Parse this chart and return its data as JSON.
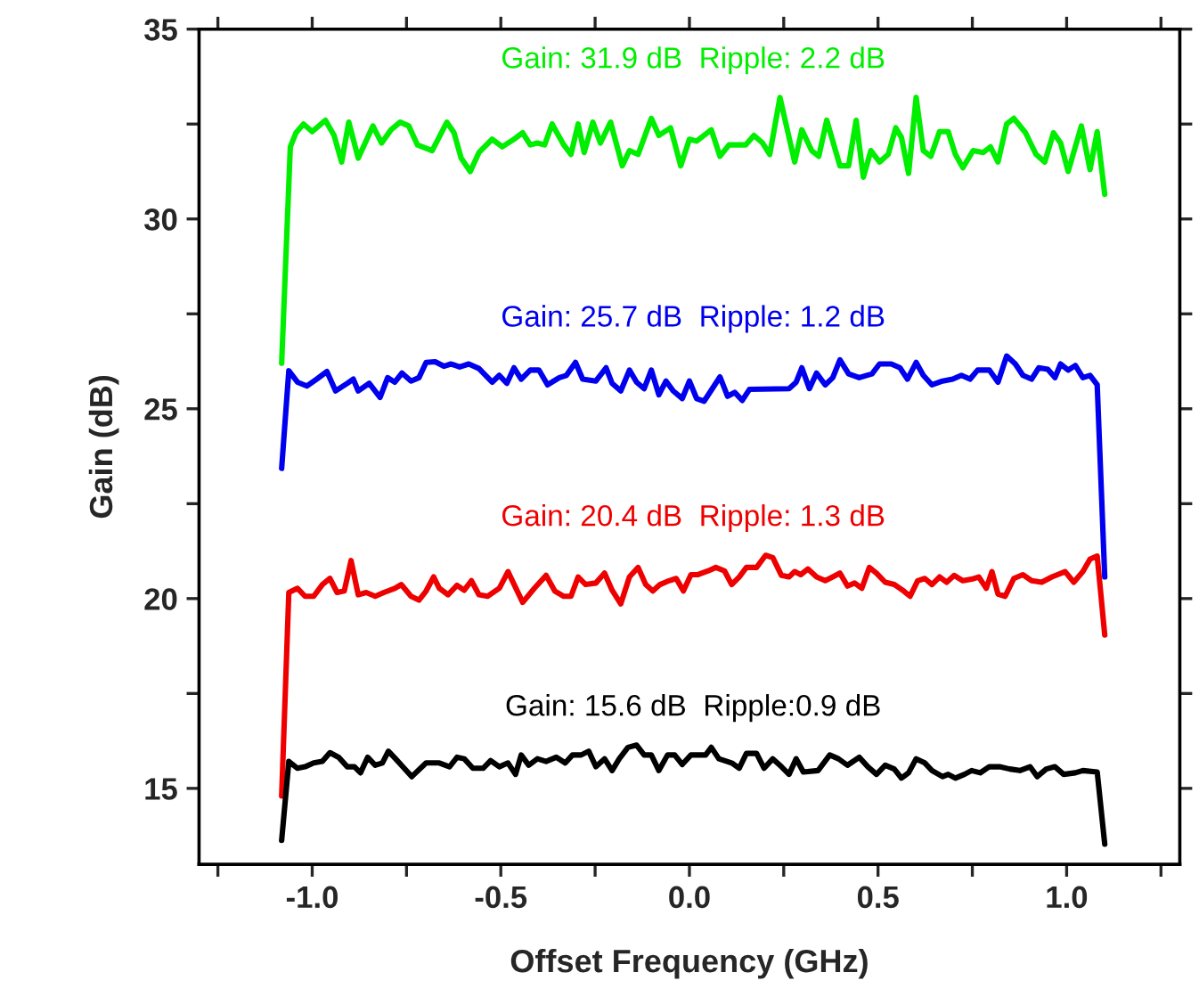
{
  "chart_data": {
    "type": "line",
    "xlabel": "Offset Frequency (GHz)",
    "ylabel": "Gain (dB)",
    "xlim": [
      -1.3,
      1.3
    ],
    "ylim": [
      13,
      35
    ],
    "xticks": [
      {
        "value": -1.25,
        "label": null
      },
      {
        "value": -1.0,
        "label": "-1.0"
      },
      {
        "value": -0.75,
        "label": null
      },
      {
        "value": -0.5,
        "label": "-0.5"
      },
      {
        "value": -0.25,
        "label": null
      },
      {
        "value": 0.0,
        "label": "0.0"
      },
      {
        "value": 0.25,
        "label": null
      },
      {
        "value": 0.5,
        "label": "0.5"
      },
      {
        "value": 0.75,
        "label": null
      },
      {
        "value": 1.0,
        "label": "1.0"
      },
      {
        "value": 1.25,
        "label": null
      }
    ],
    "yticks": [
      15,
      {
        "value": 17.5,
        "label": null
      },
      20,
      {
        "value": 22.5,
        "label": null
      },
      25,
      {
        "value": 27.5,
        "label": null
      },
      30,
      {
        "value": 32.5,
        "label": null
      },
      35
    ],
    "grid": false,
    "legend": false,
    "marker": "none",
    "line_style": "solid",
    "series": [
      {
        "name": "Gain: 31.9 dB  Ripple: 2.2 dB",
        "color": "#00ee00",
        "x": [
          -1.081,
          -1.058,
          -1.043,
          -1.023,
          -1.0,
          -0.965,
          -0.942,
          -0.922,
          -0.903,
          -0.878,
          -0.839,
          -0.816,
          -0.791,
          -0.767,
          -0.744,
          -0.721,
          -0.682,
          -0.643,
          -0.624,
          -0.605,
          -0.581,
          -0.558,
          -0.523,
          -0.496,
          -0.465,
          -0.442,
          -0.422,
          -0.403,
          -0.384,
          -0.364,
          -0.333,
          -0.314,
          -0.295,
          -0.279,
          -0.256,
          -0.236,
          -0.209,
          -0.178,
          -0.159,
          -0.136,
          -0.101,
          -0.081,
          -0.05,
          -0.023,
          0.0,
          0.019,
          0.058,
          0.081,
          0.105,
          0.149,
          0.171,
          0.194,
          0.213,
          0.24,
          0.279,
          0.298,
          0.324,
          0.343,
          0.364,
          0.399,
          0.422,
          0.442,
          0.461,
          0.481,
          0.504,
          0.527,
          0.547,
          0.562,
          0.581,
          0.601,
          0.62,
          0.64,
          0.663,
          0.686,
          0.705,
          0.725,
          0.752,
          0.779,
          0.798,
          0.818,
          0.841,
          0.86,
          0.891,
          0.919,
          0.942,
          0.965,
          0.984,
          1.004,
          1.039,
          1.062,
          1.081,
          1.101
        ],
        "values": [
          26.2,
          31.9,
          32.27,
          32.5,
          32.3,
          32.6,
          32.2,
          31.5,
          32.55,
          31.6,
          32.45,
          32.0,
          32.35,
          32.55,
          32.45,
          31.95,
          31.8,
          32.55,
          32.27,
          31.6,
          31.25,
          31.75,
          32.1,
          31.9,
          32.1,
          32.27,
          31.95,
          32.0,
          31.95,
          32.5,
          31.95,
          31.7,
          32.5,
          31.75,
          32.55,
          32.0,
          32.55,
          31.4,
          31.8,
          31.7,
          32.65,
          32.2,
          32.4,
          31.4,
          32.1,
          32.05,
          32.35,
          31.65,
          31.95,
          31.95,
          32.2,
          32.0,
          31.7,
          33.2,
          31.5,
          32.35,
          31.8,
          31.65,
          32.6,
          31.4,
          31.4,
          32.6,
          31.1,
          31.8,
          31.5,
          31.7,
          32.4,
          32.15,
          31.2,
          33.2,
          31.8,
          31.65,
          32.3,
          32.3,
          31.7,
          31.35,
          31.8,
          31.75,
          31.9,
          31.5,
          32.5,
          32.65,
          32.27,
          31.7,
          31.5,
          32.27,
          32.0,
          31.25,
          32.45,
          31.3,
          32.3,
          30.65
        ]
      },
      {
        "name": "Gain: 25.7 dB  Ripple: 1.2 dB",
        "color": "#0000ee",
        "x": [
          -1.081,
          -1.062,
          -1.039,
          -1.014,
          -0.988,
          -0.961,
          -0.938,
          -0.907,
          -0.891,
          -0.878,
          -0.849,
          -0.82,
          -0.8,
          -0.781,
          -0.762,
          -0.738,
          -0.717,
          -0.698,
          -0.674,
          -0.651,
          -0.632,
          -0.609,
          -0.585,
          -0.558,
          -0.523,
          -0.504,
          -0.484,
          -0.465,
          -0.446,
          -0.422,
          -0.399,
          -0.376,
          -0.345,
          -0.326,
          -0.302,
          -0.283,
          -0.248,
          -0.221,
          -0.205,
          -0.182,
          -0.159,
          -0.14,
          -0.12,
          -0.101,
          -0.081,
          -0.062,
          -0.043,
          -0.019,
          0.0,
          0.019,
          0.039,
          0.081,
          0.101,
          0.12,
          0.14,
          0.159,
          0.264,
          0.283,
          0.298,
          0.318,
          0.337,
          0.36,
          0.38,
          0.399,
          0.422,
          0.45,
          0.484,
          0.504,
          0.535,
          0.558,
          0.578,
          0.601,
          0.62,
          0.643,
          0.671,
          0.698,
          0.721,
          0.744,
          0.764,
          0.795,
          0.818,
          0.841,
          0.864,
          0.884,
          0.907,
          0.926,
          0.95,
          0.969,
          0.984,
          1.004,
          1.023,
          1.043,
          1.062,
          1.081,
          1.101
        ],
        "values": [
          23.43,
          26.0,
          25.7,
          25.6,
          25.78,
          25.98,
          25.47,
          25.67,
          25.78,
          25.47,
          25.67,
          25.3,
          25.82,
          25.7,
          25.94,
          25.73,
          25.82,
          26.22,
          26.24,
          26.12,
          26.18,
          26.1,
          26.18,
          26.06,
          25.7,
          25.88,
          25.67,
          26.08,
          25.78,
          26.02,
          26.02,
          25.63,
          25.82,
          25.88,
          26.22,
          25.78,
          25.73,
          26.08,
          25.67,
          25.47,
          26.02,
          25.7,
          25.53,
          26.02,
          25.37,
          25.73,
          25.47,
          25.27,
          25.73,
          25.27,
          25.2,
          25.84,
          25.33,
          25.43,
          25.22,
          25.51,
          25.53,
          25.7,
          26.08,
          25.53,
          25.94,
          25.63,
          25.82,
          26.29,
          25.92,
          25.82,
          25.92,
          26.18,
          26.18,
          26.08,
          25.78,
          26.22,
          25.88,
          25.63,
          25.73,
          25.78,
          25.88,
          25.78,
          26.02,
          26.02,
          25.7,
          26.39,
          26.18,
          25.88,
          25.78,
          26.08,
          26.04,
          25.82,
          26.18,
          26.02,
          26.14,
          25.82,
          25.88,
          25.63,
          20.57
        ]
      },
      {
        "name": "Gain: 20.4 dB  Ripple: 1.3 dB",
        "color": "#ee0000",
        "x": [
          -1.081,
          -1.062,
          -1.039,
          -1.019,
          -0.996,
          -0.973,
          -0.953,
          -0.934,
          -0.915,
          -0.897,
          -0.878,
          -0.857,
          -0.833,
          -0.81,
          -0.781,
          -0.764,
          -0.738,
          -0.717,
          -0.698,
          -0.678,
          -0.663,
          -0.64,
          -0.616,
          -0.597,
          -0.578,
          -0.558,
          -0.535,
          -0.504,
          -0.481,
          -0.442,
          -0.411,
          -0.38,
          -0.357,
          -0.333,
          -0.314,
          -0.295,
          -0.275,
          -0.248,
          -0.225,
          -0.205,
          -0.182,
          -0.159,
          -0.136,
          -0.116,
          -0.097,
          -0.078,
          -0.054,
          -0.035,
          -0.016,
          0.004,
          0.023,
          0.05,
          0.07,
          0.093,
          0.112,
          0.132,
          0.151,
          0.178,
          0.202,
          0.221,
          0.244,
          0.264,
          0.279,
          0.295,
          0.314,
          0.337,
          0.36,
          0.38,
          0.399,
          0.419,
          0.438,
          0.457,
          0.477,
          0.496,
          0.519,
          0.543,
          0.568,
          0.585,
          0.605,
          0.624,
          0.643,
          0.663,
          0.682,
          0.702,
          0.725,
          0.748,
          0.767,
          0.787,
          0.802,
          0.818,
          0.837,
          0.86,
          0.884,
          0.907,
          0.934,
          0.961,
          0.996,
          1.019,
          1.043,
          1.062,
          1.081,
          1.101
        ],
        "values": [
          14.8,
          20.16,
          20.27,
          20.06,
          20.06,
          20.37,
          20.53,
          20.16,
          20.2,
          21.0,
          20.1,
          20.16,
          20.06,
          20.16,
          20.27,
          20.37,
          20.06,
          19.96,
          20.2,
          20.57,
          20.27,
          20.1,
          20.35,
          20.22,
          20.47,
          20.1,
          20.06,
          20.27,
          20.71,
          19.9,
          20.27,
          20.61,
          20.2,
          20.06,
          20.06,
          20.57,
          20.37,
          20.41,
          20.67,
          20.22,
          19.86,
          20.57,
          20.82,
          20.37,
          20.2,
          20.37,
          20.47,
          20.53,
          20.2,
          20.63,
          20.63,
          20.73,
          20.82,
          20.73,
          20.37,
          20.57,
          20.82,
          20.82,
          21.14,
          21.08,
          20.61,
          20.57,
          20.71,
          20.63,
          20.78,
          20.57,
          20.47,
          20.57,
          20.67,
          20.33,
          20.41,
          20.27,
          20.82,
          20.67,
          20.43,
          20.37,
          20.2,
          20.06,
          20.47,
          20.53,
          20.37,
          20.57,
          20.43,
          20.61,
          20.47,
          20.51,
          20.57,
          20.27,
          20.71,
          20.12,
          20.06,
          20.53,
          20.63,
          20.47,
          20.43,
          20.57,
          20.71,
          20.43,
          20.71,
          21.04,
          21.12,
          19.04
        ]
      },
      {
        "name": "Gain: 15.6 dB  Ripple:0.9 dB",
        "color": "#000000",
        "x": [
          -1.081,
          -1.062,
          -1.039,
          -1.019,
          -0.996,
          -0.973,
          -0.953,
          -0.93,
          -0.907,
          -0.888,
          -0.872,
          -0.853,
          -0.833,
          -0.814,
          -0.798,
          -0.779,
          -0.76,
          -0.736,
          -0.698,
          -0.663,
          -0.636,
          -0.616,
          -0.597,
          -0.574,
          -0.547,
          -0.527,
          -0.504,
          -0.481,
          -0.461,
          -0.446,
          -0.426,
          -0.403,
          -0.38,
          -0.353,
          -0.329,
          -0.31,
          -0.287,
          -0.267,
          -0.248,
          -0.225,
          -0.205,
          -0.186,
          -0.163,
          -0.14,
          -0.12,
          -0.101,
          -0.081,
          -0.058,
          -0.039,
          -0.019,
          0.004,
          0.043,
          0.058,
          0.078,
          0.112,
          0.132,
          0.151,
          0.178,
          0.198,
          0.221,
          0.244,
          0.264,
          0.283,
          0.302,
          0.341,
          0.372,
          0.395,
          0.419,
          0.45,
          0.473,
          0.496,
          0.519,
          0.543,
          0.562,
          0.581,
          0.601,
          0.624,
          0.643,
          0.671,
          0.686,
          0.705,
          0.729,
          0.748,
          0.771,
          0.795,
          0.822,
          0.849,
          0.876,
          0.903,
          0.922,
          0.946,
          0.969,
          0.992,
          1.023,
          1.043,
          1.081,
          1.101
        ],
        "values": [
          13.63,
          15.71,
          15.53,
          15.57,
          15.67,
          15.71,
          15.94,
          15.82,
          15.57,
          15.57,
          15.41,
          15.82,
          15.61,
          15.67,
          15.98,
          15.78,
          15.57,
          15.31,
          15.67,
          15.67,
          15.57,
          15.82,
          15.78,
          15.53,
          15.53,
          15.73,
          15.57,
          15.67,
          15.37,
          15.88,
          15.61,
          15.78,
          15.71,
          15.82,
          15.67,
          15.88,
          15.88,
          15.98,
          15.57,
          15.78,
          15.47,
          15.78,
          16.08,
          16.14,
          15.88,
          15.88,
          15.47,
          15.88,
          15.88,
          15.63,
          15.88,
          15.88,
          16.08,
          15.78,
          15.67,
          15.53,
          15.92,
          15.92,
          15.53,
          15.78,
          15.57,
          15.37,
          15.78,
          15.43,
          15.47,
          15.88,
          15.78,
          15.61,
          15.82,
          15.57,
          15.37,
          15.61,
          15.51,
          15.27,
          15.41,
          15.78,
          15.67,
          15.47,
          15.31,
          15.37,
          15.27,
          15.37,
          15.47,
          15.41,
          15.57,
          15.57,
          15.51,
          15.47,
          15.57,
          15.31,
          15.51,
          15.57,
          15.37,
          15.41,
          15.47,
          15.43,
          13.53
        ]
      }
    ]
  }
}
